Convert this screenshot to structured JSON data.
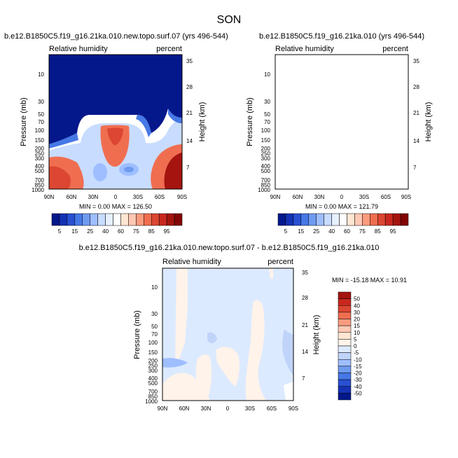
{
  "figure": {
    "title": "SON",
    "colors": {
      "positive_fill": "#d9583e",
      "negative_fill": "#1432b4",
      "background": "#ffffff"
    }
  },
  "chart_data": [
    {
      "id": "left",
      "type": "heatmap",
      "title": "b.e12.B1850C5.f19_g16.21ka.010.new.topo.surf.07 (yrs 496-544)",
      "left_label": "Relative humidity",
      "right_label": "percent",
      "ylabel": "Pressure (mb)",
      "y2label": "Height (km)",
      "x_ticks": [
        "90N",
        "60N",
        "30N",
        "0",
        "30S",
        "60S",
        "90S"
      ],
      "y_ticks": [
        "10",
        "30",
        "50",
        "70",
        "100",
        "150",
        "200",
        "250",
        "300",
        "400",
        "500",
        "700",
        "850",
        "1000"
      ],
      "y2_ticks": [
        "35",
        "28",
        "21",
        "14",
        "7"
      ],
      "stats": "MIN =   0.00  MAX = 126.50",
      "colorbar": {
        "labels": [
          "5",
          "15",
          "25",
          "40",
          "60",
          "75",
          "85",
          "95"
        ],
        "colors": [
          "#04188c",
          "#1432b4",
          "#2850d2",
          "#4678e6",
          "#6e9bf0",
          "#9ebeff",
          "#c8dcff",
          "#e6f0ff",
          "#ffffff",
          "#ffe6d2",
          "#ffc8b4",
          "#fa9b7d",
          "#f06e50",
          "#dc4632",
          "#c8281e",
          "#a5140f",
          "#820505"
        ]
      }
    },
    {
      "id": "right",
      "type": "heatmap",
      "title": "b.e12.B1850C5.f19_g16.21ka.010 (yrs 496-544)",
      "left_label": "Relative humidity",
      "right_label": "percent",
      "ylabel": "Pressure (mb)",
      "y2label": "Height (km)",
      "x_ticks": [
        "90N",
        "60N",
        "30N",
        "0",
        "30S",
        "60S",
        "90S"
      ],
      "y_ticks": [
        "10",
        "30",
        "50",
        "70",
        "100",
        "150",
        "200",
        "250",
        "300",
        "400",
        "500",
        "700",
        "850",
        "1000"
      ],
      "y2_ticks": [
        "35",
        "28",
        "21",
        "14",
        "7"
      ],
      "stats": "MIN =   0.00  MAX = 121.79",
      "colorbar": {
        "labels": [
          "5",
          "15",
          "25",
          "40",
          "60",
          "75",
          "85",
          "95"
        ],
        "colors": [
          "#04188c",
          "#1432b4",
          "#2850d2",
          "#4678e6",
          "#6e9bf0",
          "#9ebeff",
          "#c8dcff",
          "#e6f0ff",
          "#ffffff",
          "#ffe6d2",
          "#ffc8b4",
          "#fa9b7d",
          "#f06e50",
          "#dc4632",
          "#c8281e",
          "#a5140f",
          "#820505"
        ]
      }
    },
    {
      "id": "diff",
      "type": "heatmap",
      "title": "b.e12.B1850C5.f19_g16.21ka.010.new.topo.surf.07 - b.e12.B1850C5.f19_g16.21ka.010",
      "left_label": "Relative humidity",
      "right_label": "percent",
      "ylabel": "Pressure (mb)",
      "y2label": "Height (km)",
      "x_ticks": [
        "90N",
        "60N",
        "30N",
        "0",
        "30S",
        "60S",
        "90S"
      ],
      "y_ticks": [
        "10",
        "30",
        "50",
        "70",
        "100",
        "150",
        "200",
        "250",
        "300",
        "400",
        "500",
        "700",
        "850",
        "1000"
      ],
      "y2_ticks": [
        "35",
        "28",
        "21",
        "14",
        "7"
      ],
      "stats": "MIN = -15.18  MAX =  10.91",
      "colorbar": {
        "labels": [
          "50",
          "40",
          "30",
          "20",
          "15",
          "10",
          "5",
          "0",
          "-5",
          "-10",
          "-15",
          "-20",
          "-30",
          "-40",
          "-50"
        ],
        "colors": [
          "#a5140f",
          "#c8281e",
          "#dc4632",
          "#f06e50",
          "#fa9b7d",
          "#ffc8b4",
          "#ffe6d2",
          "#fff3ea",
          "#dceaff",
          "#c0d4fa",
          "#9ebeff",
          "#6e9bf0",
          "#4678e6",
          "#2850d2",
          "#1432b4",
          "#04188c"
        ]
      }
    }
  ]
}
